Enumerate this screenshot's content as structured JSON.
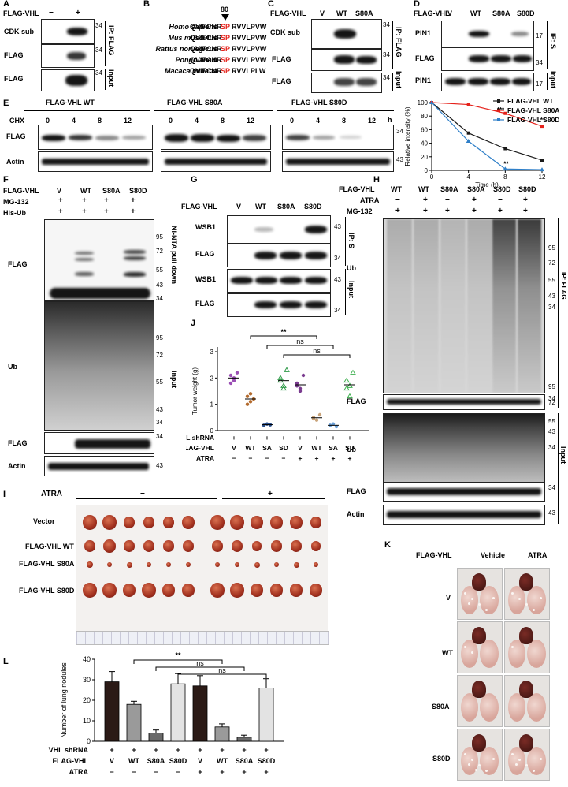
{
  "A": {
    "label": "A",
    "row_label": "FLAG-VHL",
    "lanes": [
      "−",
      "+"
    ],
    "blots": [
      "CDK sub",
      "FLAG",
      "FLAG"
    ],
    "mw": [
      "34",
      "34",
      "34"
    ],
    "brackets": [
      "IP: FLAG",
      "Input"
    ]
  },
  "B": {
    "label": "B",
    "position": "80",
    "species": [
      "Homo sapiens",
      "Mus musculus",
      "Rattus norvegicus",
      "Pongo abelii",
      "Macaca mulatta"
    ],
    "seq_pre": [
      "QVIFCNR",
      "QVIFCNR",
      "QVIFCNR",
      "QVIFCNR",
      "QVIFCNR"
    ],
    "seq_red": [
      "SP",
      "SP",
      "SP",
      "SP",
      "SP"
    ],
    "seq_post": [
      "RVVLPVW",
      "RVVLPVW",
      "RVVLPVW",
      "RVVLPVW",
      "RVVLPLW"
    ]
  },
  "C": {
    "label": "C",
    "row_label": "FLAG-VHL",
    "lanes": [
      "V",
      "WT",
      "S80A"
    ],
    "blots": [
      "CDK sub",
      "FLAG",
      "FLAG"
    ],
    "mw": [
      "34",
      "34",
      "34"
    ],
    "brackets": [
      "IP: FLAG",
      "Input"
    ]
  },
  "D": {
    "label": "D",
    "row_label": "FLAG-VHL",
    "lanes": [
      "V",
      "WT",
      "S80A",
      "S80D"
    ],
    "blots": [
      "PIN1",
      "FLAG",
      "PIN1"
    ],
    "mw": [
      "17",
      "34",
      "17"
    ],
    "brackets": [
      "IP: S",
      "Input"
    ]
  },
  "E": {
    "label": "E",
    "groups": [
      "FLAG-VHL WT",
      "FLAG-VHL S80A",
      "FLAG-VHL S80D"
    ],
    "chx_label": "CHX",
    "times": [
      "0",
      "4",
      "8",
      "12"
    ],
    "unit": "h",
    "blots": [
      "FLAG",
      "Actin"
    ],
    "mw": [
      "34",
      "43"
    ]
  },
  "chart_data": {
    "type": "line",
    "xlabel": "Time (h)",
    "ylabel": "Relative intensity (%)",
    "x": [
      0,
      4,
      8,
      12
    ],
    "xticks": [
      "0",
      "4",
      "8",
      "12"
    ],
    "yticks": [
      "0",
      "20",
      "40",
      "60",
      "80",
      "100"
    ],
    "xlim": [
      0,
      12
    ],
    "ylim": [
      0,
      100
    ],
    "series": [
      {
        "name": "FLAG-VHL WT",
        "color": "#1a1a1a",
        "values": [
          100,
          55,
          32,
          15
        ]
      },
      {
        "name": "FLAG-VHL S80A",
        "color": "#e5221b",
        "values": [
          100,
          97,
          84,
          65
        ]
      },
      {
        "name": "FLAG-VHL S80D",
        "color": "#2f7fc8",
        "values": [
          100,
          43,
          2,
          1
        ]
      }
    ],
    "annotations": [
      "***",
      "**",
      "**"
    ],
    "legend": "top-right"
  },
  "F": {
    "label": "F",
    "rows": [
      "FLAG-VHL",
      "MG-132",
      "His-Ub"
    ],
    "lanes": [
      "V",
      "WT",
      "S80A",
      "S80D"
    ],
    "row_vals": [
      [
        "+",
        "+",
        "+",
        "+"
      ],
      [
        "+",
        "+",
        "+",
        "+"
      ]
    ],
    "blot_flag": "FLAG",
    "blot_ub": "Ub",
    "blot_flag2": "FLAG",
    "blot_actin": "Actin",
    "mw_top": [
      "95",
      "72",
      "55",
      "43",
      "34"
    ],
    "mw_ub": [
      "95",
      "72",
      "55",
      "43",
      "34"
    ],
    "mw_flag": "34",
    "mw_actin": "43",
    "brackets": [
      "Ni-NTA pull down",
      "Input"
    ]
  },
  "G": {
    "label": "G",
    "row_label": "FLAG-VHL",
    "lanes": [
      "V",
      "WT",
      "S80A",
      "S80D"
    ],
    "blots": [
      "WSB1",
      "FLAG",
      "WSB1",
      "FLAG"
    ],
    "mw": [
      "43",
      "34",
      "43",
      "34"
    ],
    "brackets": [
      "IP: S",
      "Input"
    ]
  },
  "H": {
    "label": "H",
    "rows": [
      "FLAG-VHL",
      "ATRA",
      "MG-132"
    ],
    "lanes": [
      "WT",
      "WT",
      "S80A",
      "S80A",
      "S80D",
      "S80D"
    ],
    "atra": [
      "−",
      "+",
      "−",
      "+",
      "−",
      "+"
    ],
    "mg": [
      "+",
      "+",
      "+",
      "+",
      "+",
      "+"
    ],
    "blot_ub": "Ub",
    "blot_flag": "FLAG",
    "blot_ub2": "Ub",
    "blot_flag2": "FLAG",
    "blot_actin": "Actin",
    "mw_ub": [
      "95",
      "72",
      "55",
      "43",
      "34"
    ],
    "mw_flag": "34",
    "mw_ub2": [
      "95",
      "72",
      "55",
      "43",
      "34"
    ],
    "mw_flag2": "34",
    "mw_actin": "43",
    "brackets": [
      "IP: FLAG",
      "Input"
    ]
  },
  "J": {
    "label": "J",
    "ylabel": "Tumor weight (g)",
    "yticks": [
      "0",
      "1",
      "2",
      "3"
    ],
    "stars": "**",
    "ns": [
      "ns",
      "ns"
    ],
    "rows": [
      "VHL shRNA",
      "FLAG-VHL",
      "ATRA"
    ],
    "shrna": [
      "+",
      "+",
      "+",
      "+",
      "+",
      "+",
      "+",
      "+"
    ],
    "flag": [
      "V",
      "WT",
      "SA",
      "SD",
      "V",
      "WT",
      "SA",
      "SD"
    ],
    "atra": [
      "−",
      "−",
      "−",
      "−",
      "+",
      "+",
      "+",
      "+"
    ]
  },
  "I": {
    "label": "I",
    "atra_label": "ATRA",
    "minus": "−",
    "plus": "+",
    "rows": [
      "Vector",
      "FLAG-VHL WT",
      "FLAG-VHL S80A",
      "FLAG-VHL S80D"
    ]
  },
  "K": {
    "label": "K",
    "col_header": "FLAG-VHL",
    "cols": [
      "Vehicle",
      "ATRA"
    ],
    "rows": [
      "V",
      "WT",
      "S80A",
      "S80D"
    ]
  },
  "L": {
    "label": "L",
    "ylabel": "Number of lung nodules",
    "yticks": [
      "0",
      "10",
      "20",
      "30",
      "40"
    ],
    "stars": "**",
    "ns": [
      "ns",
      "ns"
    ],
    "rows": [
      "VHL shRNA",
      "FLAG-VHL",
      "ATRA"
    ],
    "shrna": [
      "+",
      "+",
      "+",
      "+",
      "+",
      "+",
      "+",
      "+"
    ],
    "flag": [
      "V",
      "WT",
      "S80A",
      "S80D",
      "V",
      "WT",
      "S80A",
      "S80D"
    ],
    "atra": [
      "−",
      "−",
      "−",
      "−",
      "+",
      "+",
      "+",
      "+"
    ],
    "values": [
      29,
      18,
      4,
      28,
      27,
      7,
      2,
      26
    ],
    "errors": [
      5,
      1.5,
      1.5,
      5,
      5,
      1.5,
      1,
      4.5
    ],
    "colors": [
      "#2b1a16",
      "#9a9a9a",
      "#6a6a6a",
      "#e3e3e3",
      "#2b1a16",
      "#9a9a9a",
      "#6a6a6a",
      "#e3e3e3"
    ]
  }
}
